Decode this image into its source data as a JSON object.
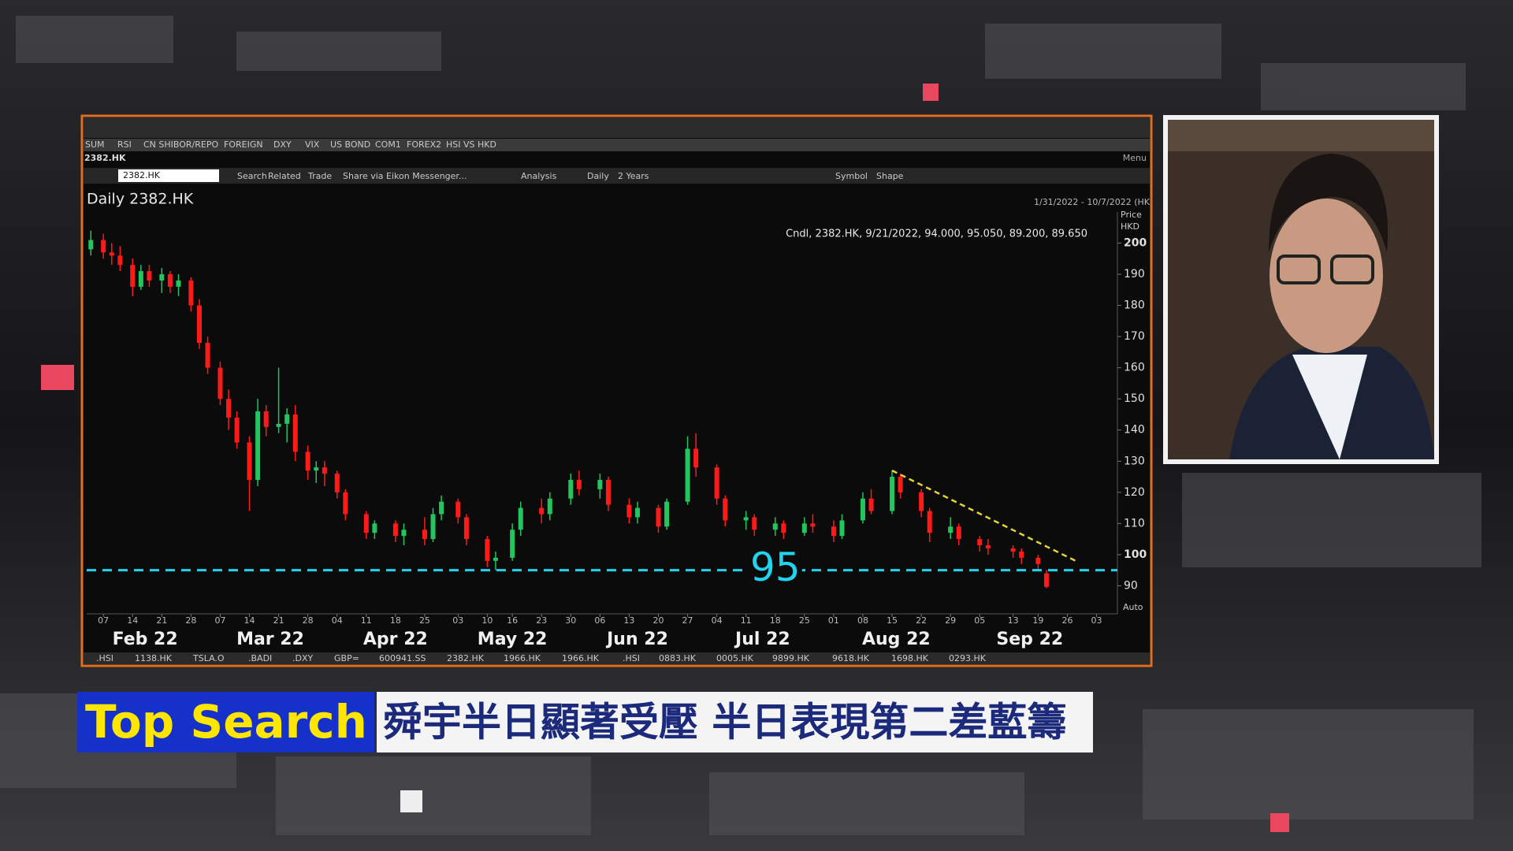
{
  "window": {
    "tabs": [
      "SUM",
      "RSI",
      "CN SHIBOR/REPO",
      "FOREIGN",
      "DXY",
      "VIX",
      "US BOND",
      "COM1",
      "FOREX2",
      "HSI VS HKD"
    ],
    "symbol": "2382.HK",
    "menu": "Menu",
    "search_box": "2382.HK",
    "toolbar": [
      "Search",
      "Related",
      "Trade",
      "Share via Eikon Messenger...",
      "Analysis",
      "Daily",
      "2 Years",
      "Symbol",
      "Shape"
    ],
    "bottom_tabs": [
      ".HSI",
      "1138.HK",
      "TSLA.O",
      ".BADI",
      ".DXY",
      "GBP=",
      "600941.SS",
      "2382.HK",
      "1966.HK",
      "1966.HK",
      ".HSI",
      "0883.HK",
      "0005.HK",
      "9899.HK",
      "9618.HK",
      "1698.HK",
      "0293.HK"
    ]
  },
  "chart_data": {
    "type": "candlestick",
    "title": "Daily 2382.HK",
    "date_range": "1/31/2022 - 10/7/2022 (HK",
    "y_label": [
      "Price",
      "HKD"
    ],
    "scale_mode": "Auto",
    "annotation": "Cndl, 2382.HK, 9/21/2022, 94.000, 95.050, 89.200, 89.650",
    "xlim": [
      3,
      250
    ],
    "ylim": [
      81,
      210
    ],
    "yticks": [
      90,
      100,
      110,
      120,
      130,
      140,
      150,
      160,
      170,
      180,
      190,
      200
    ],
    "xticks": [
      {
        "value": 7,
        "label": "07"
      },
      {
        "value": 14,
        "label": "14"
      },
      {
        "value": 21,
        "label": "21"
      },
      {
        "value": 28,
        "label": "28"
      },
      {
        "value": 35,
        "label": "07"
      },
      {
        "value": 42,
        "label": "14"
      },
      {
        "value": 49,
        "label": "21"
      },
      {
        "value": 56,
        "label": "28"
      },
      {
        "value": 63,
        "label": "04"
      },
      {
        "value": 70,
        "label": "11"
      },
      {
        "value": 77,
        "label": "18"
      },
      {
        "value": 84,
        "label": "25"
      },
      {
        "value": 92,
        "label": "03"
      },
      {
        "value": 99,
        "label": "10"
      },
      {
        "value": 105,
        "label": "16"
      },
      {
        "value": 112,
        "label": "23"
      },
      {
        "value": 119,
        "label": "30"
      },
      {
        "value": 126,
        "label": "06"
      },
      {
        "value": 133,
        "label": "13"
      },
      {
        "value": 140,
        "label": "20"
      },
      {
        "value": 147,
        "label": "27"
      },
      {
        "value": 154,
        "label": "04"
      },
      {
        "value": 161,
        "label": "11"
      },
      {
        "value": 168,
        "label": "18"
      },
      {
        "value": 175,
        "label": "25"
      },
      {
        "value": 182,
        "label": "01"
      },
      {
        "value": 189,
        "label": "08"
      },
      {
        "value": 196,
        "label": "15"
      },
      {
        "value": 203,
        "label": "22"
      },
      {
        "value": 210,
        "label": "29"
      },
      {
        "value": 217,
        "label": "05"
      },
      {
        "value": 225,
        "label": "13"
      },
      {
        "value": 231,
        "label": "19"
      },
      {
        "value": 238,
        "label": "26"
      },
      {
        "value": 245,
        "label": "03"
      }
    ],
    "month_labels": [
      {
        "value": 17,
        "label": "Feb 22"
      },
      {
        "value": 47,
        "label": "Mar 22"
      },
      {
        "value": 77,
        "label": "Apr 22"
      },
      {
        "value": 105,
        "label": "May 22"
      },
      {
        "value": 135,
        "label": "Jun 22"
      },
      {
        "value": 165,
        "label": "Jul 22"
      },
      {
        "value": 197,
        "label": "Aug 22"
      },
      {
        "value": 229,
        "label": "Sep 22"
      }
    ],
    "up_color": "#22c55e",
    "down_color": "#ff1a1a",
    "candles": [
      [
        4,
        198,
        204,
        196,
        201
      ],
      [
        7,
        201,
        203,
        195,
        197
      ],
      [
        9,
        197,
        200,
        193,
        196
      ],
      [
        11,
        196,
        199,
        191,
        193
      ],
      [
        14,
        193,
        195,
        183,
        186
      ],
      [
        16,
        186,
        193,
        185,
        191
      ],
      [
        18,
        191,
        193,
        186,
        188
      ],
      [
        21,
        188,
        192,
        184,
        190
      ],
      [
        23,
        190,
        191,
        184,
        186
      ],
      [
        25,
        186,
        190,
        183,
        188
      ],
      [
        28,
        188,
        189,
        178,
        180
      ],
      [
        30,
        180,
        182,
        166,
        168
      ],
      [
        32,
        168,
        170,
        158,
        160
      ],
      [
        35,
        160,
        162,
        148,
        150
      ],
      [
        37,
        150,
        153,
        140,
        144
      ],
      [
        39,
        144,
        146,
        134,
        136
      ],
      [
        42,
        136,
        138,
        114,
        124
      ],
      [
        44,
        124,
        150,
        122,
        146
      ],
      [
        46,
        146,
        148,
        138,
        141
      ],
      [
        49,
        141,
        160,
        139,
        142
      ],
      [
        51,
        142,
        147,
        136,
        145
      ],
      [
        53,
        145,
        148,
        130,
        133
      ],
      [
        56,
        133,
        135,
        124,
        127
      ],
      [
        58,
        127,
        130,
        123,
        128
      ],
      [
        60,
        128,
        130,
        122,
        126
      ],
      [
        63,
        126,
        127,
        118,
        120
      ],
      [
        65,
        120,
        121,
        111,
        113
      ],
      [
        70,
        113,
        114,
        105,
        107
      ],
      [
        72,
        107,
        111,
        105,
        110
      ],
      [
        77,
        110,
        111,
        104,
        106
      ],
      [
        79,
        106,
        110,
        103,
        108
      ],
      [
        84,
        108,
        112,
        103,
        105
      ],
      [
        86,
        105,
        115,
        104,
        113
      ],
      [
        88,
        113,
        119,
        111,
        117
      ],
      [
        92,
        117,
        118,
        110,
        112
      ],
      [
        94,
        112,
        113,
        103,
        105
      ],
      [
        99,
        105,
        106,
        96,
        98
      ],
      [
        101,
        98,
        101,
        95,
        99
      ],
      [
        105,
        99,
        110,
        98,
        108
      ],
      [
        107,
        108,
        117,
        106,
        115
      ],
      [
        112,
        115,
        118,
        110,
        113
      ],
      [
        114,
        113,
        120,
        111,
        118
      ],
      [
        119,
        118,
        126,
        116,
        124
      ],
      [
        121,
        124,
        127,
        119,
        121
      ],
      [
        126,
        121,
        126,
        118,
        124
      ],
      [
        128,
        124,
        125,
        114,
        116
      ],
      [
        133,
        116,
        118,
        110,
        112
      ],
      [
        135,
        112,
        117,
        110,
        115
      ],
      [
        140,
        115,
        116,
        107,
        109
      ],
      [
        142,
        109,
        118,
        108,
        117
      ],
      [
        147,
        117,
        138,
        116,
        134
      ],
      [
        149,
        134,
        139,
        125,
        128
      ],
      [
        154,
        128,
        129,
        116,
        118
      ],
      [
        156,
        118,
        119,
        109,
        111
      ],
      [
        161,
        111,
        114,
        108,
        112
      ],
      [
        163,
        112,
        113,
        106,
        108
      ],
      [
        168,
        108,
        112,
        106,
        110
      ],
      [
        170,
        110,
        111,
        105,
        107
      ],
      [
        175,
        107,
        112,
        106,
        110
      ],
      [
        177,
        110,
        113,
        107,
        109
      ],
      [
        182,
        109,
        111,
        104,
        106
      ],
      [
        184,
        106,
        113,
        105,
        111
      ],
      [
        189,
        111,
        120,
        110,
        118
      ],
      [
        191,
        118,
        121,
        113,
        114
      ],
      [
        196,
        114,
        127,
        113,
        125
      ],
      [
        198,
        125,
        126,
        118,
        120
      ],
      [
        203,
        120,
        121,
        112,
        114
      ],
      [
        205,
        114,
        115,
        104,
        107
      ],
      [
        210,
        107,
        112,
        105,
        109
      ],
      [
        212,
        109,
        110,
        103,
        105
      ],
      [
        217,
        105,
        106,
        101,
        103
      ],
      [
        219,
        103,
        105,
        100,
        102
      ],
      [
        225,
        102,
        103,
        99,
        101
      ],
      [
        227,
        101,
        102,
        97,
        99
      ],
      [
        231,
        99,
        100,
        95,
        97
      ],
      [
        233,
        94,
        95.05,
        89.2,
        89.65
      ]
    ],
    "support": {
      "value": 95,
      "color": "#22d3ee"
    },
    "trendline": {
      "x": [
        196,
        240
      ],
      "y": [
        127,
        98
      ],
      "color": "#e5d335"
    }
  },
  "banner": {
    "tag": "Top Search",
    "headline": "舜宇半日顯著受壓 半日表現第二差藍籌"
  }
}
